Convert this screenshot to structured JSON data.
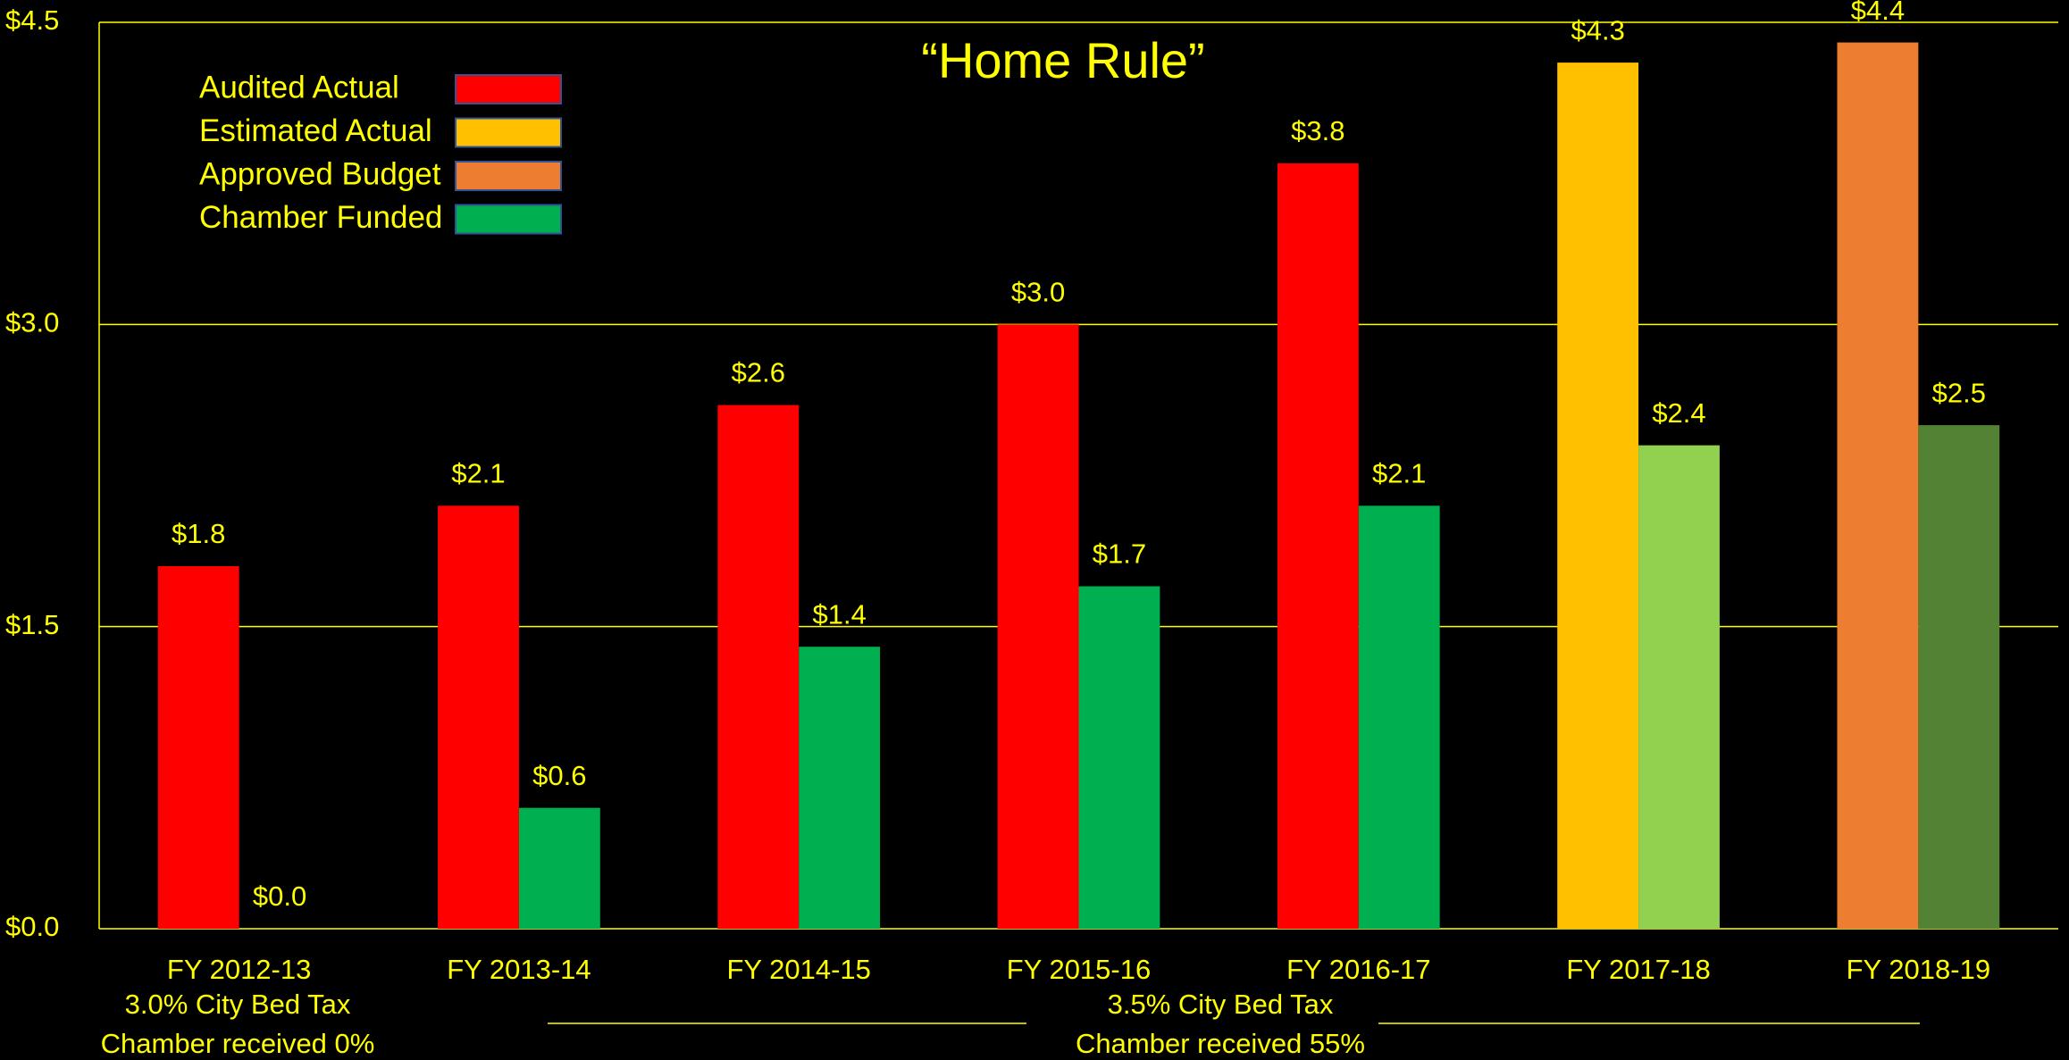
{
  "chart_data": {
    "type": "bar",
    "annotation": "“Home Rule”",
    "categories": [
      "FY 2012-13",
      "FY 2013-14",
      "FY 2014-15",
      "FY 2015-16",
      "FY 2016-17",
      "FY 2017-18",
      "FY 2018-19"
    ],
    "series": [
      {
        "colors": [
          "#ff0000",
          "#ff0000",
          "#ff0000",
          "#ff0000",
          "#ff0000",
          "#ffc000",
          "#ed7d31"
        ],
        "values": [
          1.8,
          2.1,
          2.6,
          3.0,
          3.8,
          4.3,
          4.4
        ],
        "value_labels": [
          "$1.8",
          "$2.1",
          "$2.6",
          "$3.0",
          "$3.8",
          "$4.3",
          "$4.4"
        ]
      },
      {
        "colors": [
          "#00b050",
          "#00b050",
          "#00b050",
          "#00b050",
          "#00b050",
          "#92d050",
          "#548235"
        ],
        "values": [
          0.0,
          0.6,
          1.4,
          1.7,
          2.1,
          2.4,
          2.5
        ],
        "value_labels": [
          "$0.0",
          "$0.6",
          "$1.4",
          "$1.7",
          "$2.1",
          "$2.4",
          "$2.5"
        ]
      }
    ],
    "legend": [
      {
        "name": "Audited Actual",
        "color": "#ff0000"
      },
      {
        "name": "Estimated Actual",
        "color": "#ffc000"
      },
      {
        "name": "Approved Budget",
        "color": "#ed7d31"
      },
      {
        "name": "Chamber Funded",
        "color": "#00b050"
      }
    ],
    "ylim": [
      0,
      4.5
    ],
    "yticks": [
      {
        "value": 0,
        "label": "$0.0"
      },
      {
        "value": 1.5,
        "label": "$1.5"
      },
      {
        "value": 3.0,
        "label": "$3.0"
      },
      {
        "value": 4.5,
        "label": "$4.5"
      }
    ],
    "grid": true,
    "notes": [
      "3.0% City Bed Tax",
      "Chamber received 0%",
      "3.5% City Bed Tax",
      "Chamber received 55%"
    ]
  }
}
